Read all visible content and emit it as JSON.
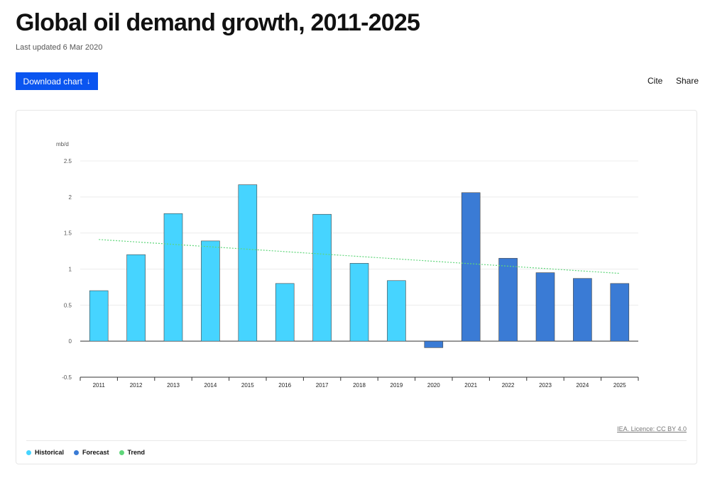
{
  "page": {
    "title": "Global oil demand growth, 2011-2025",
    "updated": "Last updated 6 Mar 2020",
    "download_label": "Download chart",
    "download_arrow": "↓",
    "cite_label": "Cite",
    "share_label": "Share",
    "licence": "IEA. Licence: CC BY 4.0"
  },
  "legend": [
    {
      "label": "Historical",
      "color": "#46d4ff"
    },
    {
      "label": "Forecast",
      "color": "#3a7bd5"
    },
    {
      "label": "Trend",
      "color": "#5fd67a"
    }
  ],
  "chart_data": {
    "type": "bar",
    "ylabel": "mb/d",
    "ylim": [
      -0.5,
      2.5
    ],
    "yticks": [
      "2.5",
      "2",
      "1.5",
      "1",
      "0.5",
      "0",
      "-0.5"
    ],
    "ytick_values": [
      2.5,
      2,
      1.5,
      1,
      0.5,
      0,
      -0.5
    ],
    "categories": [
      "2011",
      "2012",
      "2013",
      "2014",
      "2015",
      "2016",
      "2017",
      "2018",
      "2019",
      "2020",
      "2021",
      "2022",
      "2023",
      "2024",
      "2025"
    ],
    "series": [
      {
        "name": "Historical",
        "color": "#46d4ff",
        "values": [
          0.7,
          1.2,
          1.77,
          1.39,
          2.17,
          0.8,
          1.76,
          1.08,
          0.84,
          null,
          null,
          null,
          null,
          null,
          null
        ]
      },
      {
        "name": "Forecast",
        "color": "#3a7bd5",
        "values": [
          null,
          null,
          null,
          null,
          null,
          null,
          null,
          null,
          null,
          -0.09,
          2.06,
          1.15,
          0.95,
          0.87,
          0.8
        ]
      }
    ],
    "trend": {
      "name": "Trend",
      "color": "#5fd67a",
      "start": 1.41,
      "end": 0.94
    },
    "grid": true,
    "legend_position": "bottom-left"
  }
}
